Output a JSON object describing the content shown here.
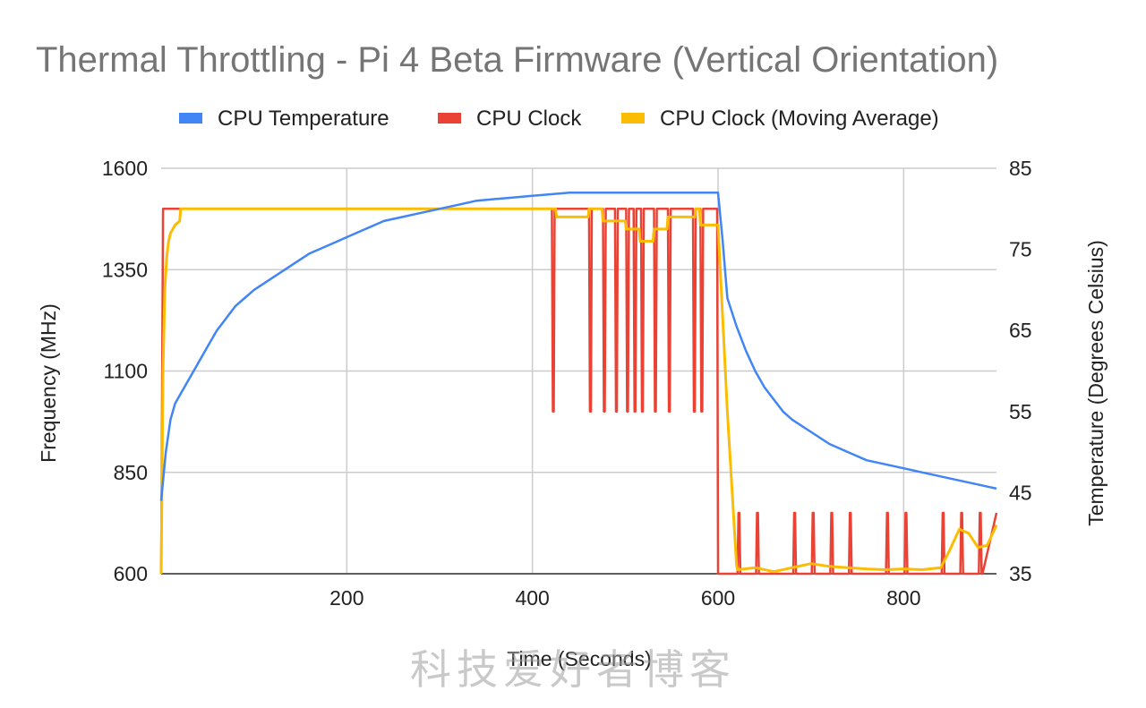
{
  "chart_data": {
    "type": "line",
    "title": "Thermal Throttling - Pi 4 Beta Firmware (Vertical Orientation)",
    "xlabel": "Time (Seconds)",
    "ylabel_left": "Frequency (MHz)",
    "ylabel_right": "Temperature (Degrees Celsius)",
    "xlim": [
      0,
      900
    ],
    "x_ticks": [
      200,
      400,
      600,
      800
    ],
    "ylim_left": [
      600,
      1600
    ],
    "y_ticks_left": [
      600,
      850,
      1100,
      1350,
      1600
    ],
    "ylim_right": [
      35,
      85
    ],
    "y_ticks_right": [
      35,
      45,
      55,
      65,
      75,
      85
    ],
    "grid": true,
    "legend_position": "top",
    "series": [
      {
        "name": "CPU Temperature",
        "axis": "right",
        "color": "#4285f4",
        "x": [
          0,
          5,
          10,
          15,
          20,
          30,
          40,
          50,
          60,
          70,
          80,
          90,
          100,
          120,
          140,
          160,
          180,
          200,
          220,
          240,
          260,
          280,
          300,
          320,
          340,
          360,
          380,
          400,
          420,
          440,
          460,
          480,
          500,
          520,
          540,
          560,
          580,
          600,
          605,
          610,
          620,
          630,
          640,
          650,
          660,
          670,
          680,
          700,
          720,
          740,
          760,
          780,
          800,
          820,
          840,
          860,
          880,
          900
        ],
        "values": [
          44,
          50,
          54,
          56,
          57,
          59,
          61,
          63,
          65,
          66.5,
          68,
          69,
          70,
          71.5,
          73,
          74.5,
          75.5,
          76.5,
          77.5,
          78.5,
          79,
          79.5,
          80,
          80.5,
          81,
          81.2,
          81.4,
          81.6,
          81.8,
          82,
          82,
          82,
          82,
          82,
          82,
          82,
          82,
          82,
          76,
          69,
          65.5,
          62.5,
          60,
          58,
          56.5,
          55,
          54,
          52.5,
          51,
          50,
          49,
          48.5,
          48,
          47.5,
          47,
          46.5,
          46,
          45.5
        ]
      },
      {
        "name": "CPU Clock",
        "axis": "left",
        "color": "#ea4335",
        "x": [
          0,
          2,
          3,
          420,
          421,
          422,
          423,
          424,
          425,
          460,
          461,
          462,
          463,
          464,
          465,
          475,
          476,
          477,
          478,
          479,
          480,
          488,
          489,
          490,
          491,
          492,
          493,
          500,
          501,
          502,
          503,
          504,
          505,
          508,
          509,
          510,
          511,
          512,
          513,
          516,
          517,
          518,
          519,
          520,
          521,
          530,
          531,
          532,
          533,
          534,
          535,
          545,
          546,
          547,
          548,
          549,
          550,
          572,
          573,
          574,
          575,
          576,
          577,
          580,
          581,
          582,
          583,
          584,
          585,
          599,
          600,
          601,
          620,
          621,
          622,
          623,
          624,
          625,
          640,
          641,
          642,
          643,
          644,
          645,
          680,
          681,
          682,
          683,
          684,
          685,
          700,
          701,
          702,
          703,
          704,
          705,
          720,
          721,
          722,
          723,
          724,
          725,
          740,
          741,
          742,
          743,
          744,
          745,
          780,
          781,
          782,
          783,
          784,
          785,
          800,
          801,
          802,
          803,
          804,
          805,
          840,
          841,
          842,
          843,
          844,
          845,
          860,
          861,
          862,
          863,
          864,
          865,
          880,
          881,
          882,
          883,
          884,
          885,
          900
        ],
        "values": [
          600,
          1500,
          1500,
          1500,
          1500,
          1000,
          1000,
          1500,
          1500,
          1500,
          1500,
          1000,
          1000,
          1500,
          1500,
          1500,
          1500,
          1000,
          1000,
          1500,
          1500,
          1500,
          1500,
          1000,
          1000,
          1500,
          1500,
          1500,
          1500,
          1000,
          1000,
          1500,
          1500,
          1500,
          1500,
          1000,
          1000,
          1500,
          1500,
          1500,
          1500,
          1000,
          1000,
          1500,
          1500,
          1500,
          1500,
          1000,
          1000,
          1500,
          1500,
          1500,
          1500,
          1000,
          1000,
          1500,
          1500,
          1500,
          1500,
          1000,
          1000,
          1500,
          1500,
          1500,
          1500,
          1000,
          1000,
          1500,
          1500,
          1500,
          600,
          600,
          600,
          600,
          750,
          750,
          600,
          600,
          600,
          600,
          750,
          750,
          600,
          600,
          600,
          600,
          750,
          750,
          600,
          600,
          600,
          600,
          750,
          750,
          600,
          600,
          600,
          600,
          750,
          750,
          600,
          600,
          600,
          600,
          750,
          750,
          600,
          600,
          600,
          600,
          750,
          750,
          600,
          600,
          600,
          600,
          750,
          750,
          600,
          600,
          600,
          600,
          750,
          750,
          600,
          600,
          600,
          600,
          750,
          750,
          600,
          600,
          600,
          600,
          750,
          750,
          600,
          600,
          750
        ]
      },
      {
        "name": "CPU Clock (Moving Average)",
        "axis": "left",
        "color": "#fbbc04",
        "x": [
          0,
          2,
          4,
          6,
          8,
          10,
          15,
          20,
          21,
          22,
          425,
          426,
          440,
          460,
          461,
          475,
          476,
          490,
          500,
          501,
          515,
          516,
          530,
          531,
          545,
          546,
          560,
          575,
          576,
          580,
          581,
          600,
          610,
          620,
          621,
          640,
          660,
          680,
          700,
          720,
          740,
          760,
          780,
          800,
          820,
          840,
          850,
          860,
          870,
          880,
          890,
          900
        ],
        "values": [
          600,
          1100,
          1300,
          1380,
          1420,
          1440,
          1460,
          1470,
          1500,
          1500,
          1500,
          1480,
          1480,
          1480,
          1500,
          1500,
          1470,
          1470,
          1470,
          1450,
          1450,
          1420,
          1420,
          1450,
          1450,
          1480,
          1480,
          1480,
          1500,
          1500,
          1460,
          1460,
          1000,
          620,
          610,
          615,
          605,
          615,
          625,
          618,
          615,
          612,
          610,
          612,
          610,
          615,
          660,
          710,
          700,
          665,
          670,
          720
        ]
      }
    ]
  },
  "watermark_text": "科技爱好者博客"
}
